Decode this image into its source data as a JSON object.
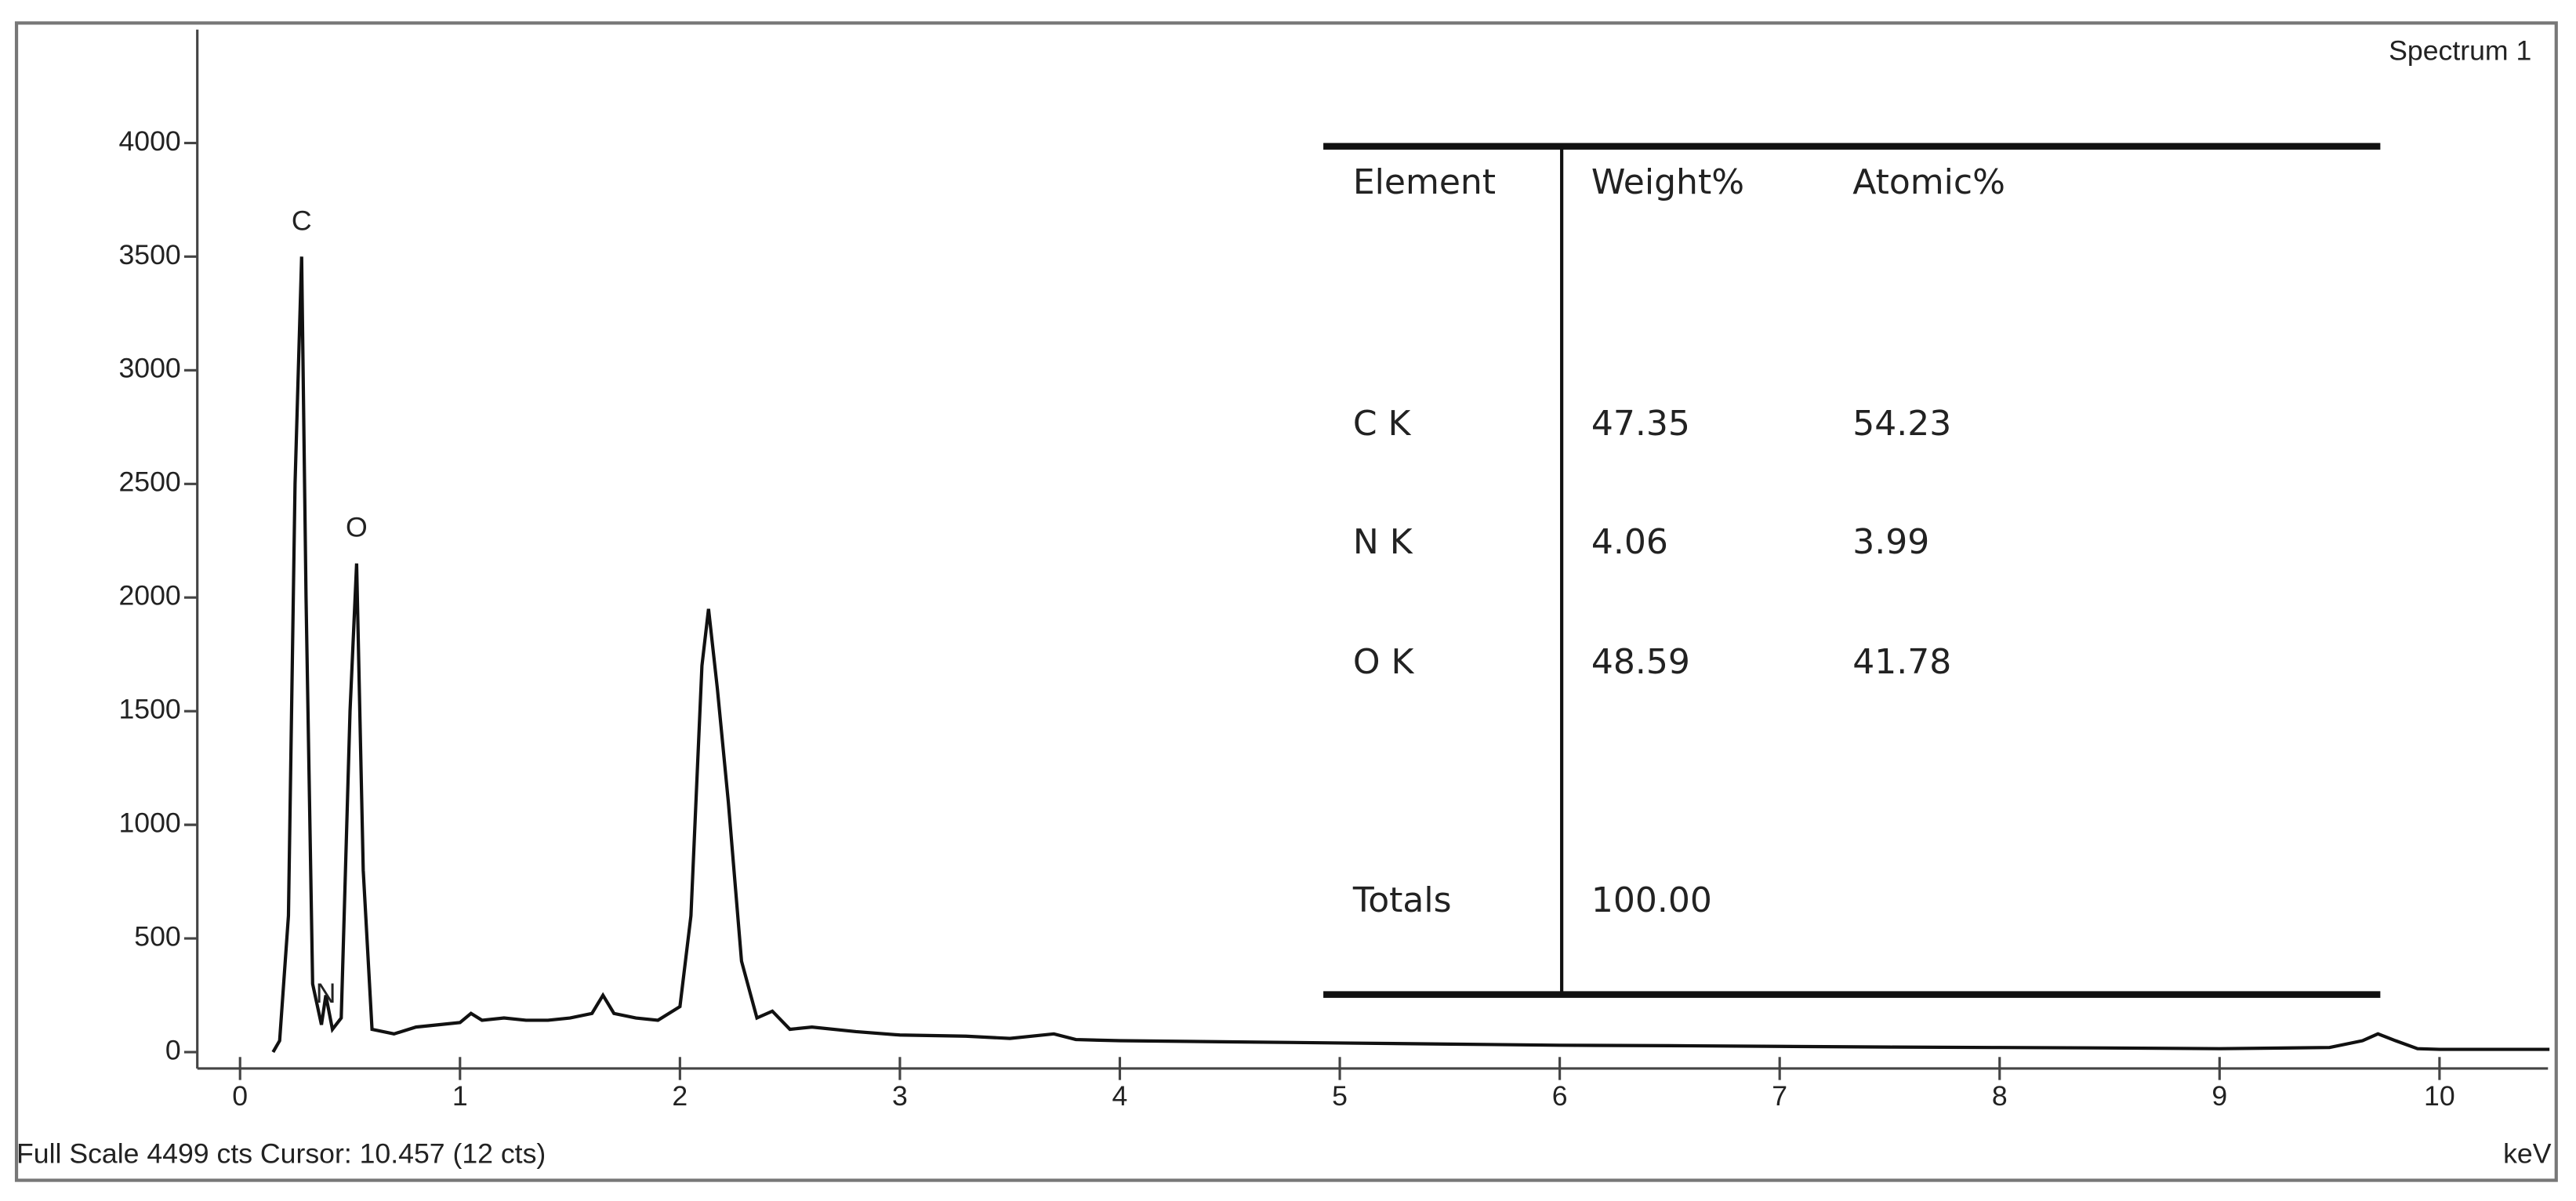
{
  "chart_data": {
    "type": "line",
    "title": "Spectrum 1",
    "annotation": "Full Scale 4499 cts Cursor: 10.457  (12 cts)",
    "x_label": "keV",
    "color": "#111111",
    "xlim": [
      -0.2,
      10.5
    ],
    "ylim": [
      0,
      4499
    ],
    "xticks": [
      0,
      1,
      2,
      3,
      4,
      5,
      6,
      7,
      8,
      9,
      10
    ],
    "yticks": [
      0,
      500,
      1000,
      1500,
      2000,
      2500,
      3000,
      3500,
      4000
    ],
    "x": [
      0.15,
      0.18,
      0.22,
      0.25,
      0.28,
      0.3,
      0.33,
      0.37,
      0.39,
      0.42,
      0.46,
      0.5,
      0.53,
      0.56,
      0.6,
      0.7,
      0.8,
      0.9,
      1.0,
      1.05,
      1.1,
      1.2,
      1.3,
      1.4,
      1.5,
      1.6,
      1.65,
      1.7,
      1.8,
      1.9,
      2.0,
      2.05,
      2.1,
      2.13,
      2.17,
      2.22,
      2.28,
      2.35,
      2.42,
      2.5,
      2.6,
      2.8,
      3.0,
      3.3,
      3.5,
      3.7,
      3.8,
      4.0,
      4.5,
      5.0,
      5.5,
      6.0,
      6.5,
      7.0,
      7.5,
      8.0,
      8.5,
      9.0,
      9.5,
      9.65,
      9.72,
      9.8,
      9.9,
      10.0,
      10.5
    ],
    "values": [
      0,
      50,
      600,
      2500,
      3500,
      2000,
      300,
      120,
      250,
      100,
      150,
      1500,
      2150,
      800,
      100,
      80,
      110,
      120,
      130,
      170,
      140,
      150,
      140,
      140,
      150,
      170,
      250,
      170,
      150,
      140,
      200,
      600,
      1700,
      1950,
      1600,
      1100,
      400,
      150,
      180,
      100,
      110,
      90,
      75,
      70,
      60,
      80,
      55,
      50,
      45,
      40,
      35,
      30,
      28,
      25,
      22,
      20,
      18,
      15,
      20,
      50,
      80,
      50,
      15,
      12,
      12
    ],
    "peak_labels": [
      {
        "text": "C",
        "x": 0.28,
        "y": 3650
      },
      {
        "text": "N",
        "x": 0.39,
        "y": 250
      },
      {
        "text": "O",
        "x": 0.53,
        "y": 2300
      }
    ],
    "table": {
      "columns": [
        "Element",
        "Weight%",
        "Atomic%"
      ],
      "rows": [
        [
          "C K",
          "47.35",
          "54.23"
        ],
        [
          "N K",
          "4.06",
          "3.99"
        ],
        [
          "O K",
          "48.59",
          "41.78"
        ]
      ],
      "totals": [
        "Totals",
        "100.00"
      ]
    }
  }
}
